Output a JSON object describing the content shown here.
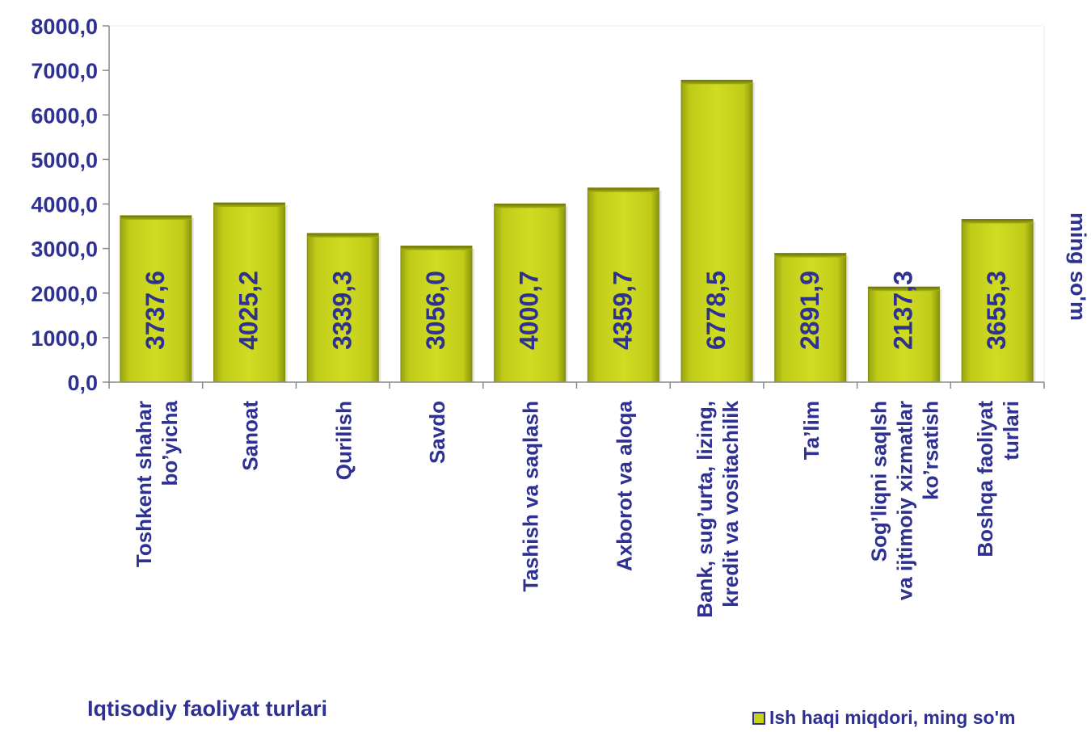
{
  "chart_data": {
    "type": "bar",
    "categories": [
      [
        "Toshkent shahar",
        "bo’yicha"
      ],
      [
        "Sanoat"
      ],
      [
        "Qurilish"
      ],
      [
        "Savdo"
      ],
      [
        "Tashish va saqlash"
      ],
      [
        "Axborot va aloqa"
      ],
      [
        "Bank, sug’urta, lizing,",
        "kredit va vositachilik"
      ],
      [
        "Ta’lim"
      ],
      [
        "Sog’liqni saqlsh",
        "va ijtimoiy  xizmatlar",
        "ko’rsatish"
      ],
      [
        "Boshqa faoliyat",
        "turlari"
      ]
    ],
    "values": [
      3737.6,
      4025.2,
      3339.3,
      3056.0,
      4000.7,
      4359.7,
      6778.5,
      2891.9,
      2137.3,
      3655.3
    ],
    "value_labels": [
      "3737,6",
      "4025,2",
      "3339,3",
      "3056,0",
      "4000,7",
      "4359,7",
      "6778,5",
      "2891,9",
      "2137,3",
      "3655,3"
    ],
    "series": [
      {
        "name": "Ish haqi  miqdori, ming so'm",
        "values": [
          3737.6,
          4025.2,
          3339.3,
          3056.0,
          4000.7,
          4359.7,
          6778.5,
          2891.9,
          2137.3,
          3655.3
        ]
      }
    ],
    "ylim": [
      0,
      8000
    ],
    "yticks": [
      0,
      1000,
      2000,
      3000,
      4000,
      5000,
      6000,
      7000,
      8000
    ],
    "ytick_labels": [
      "0,0",
      "1000,0",
      "2000,0",
      "3000,0",
      "4000,0",
      "5000,0",
      "6000,0",
      "7000,0",
      "8000,0"
    ],
    "xlabel": "Iqtisodiy faoliyat  turlari",
    "ylabel": "ming so'm",
    "legend_position": "bottom-right",
    "grid": false,
    "colors": {
      "text": "#2e3192",
      "bar_fill": "#c6d21a",
      "bar_shade": "#8a9410",
      "axis": "#888888"
    }
  }
}
